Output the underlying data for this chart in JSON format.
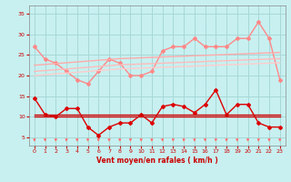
{
  "xlabel": "Vent moyen/en rafales ( km/h )",
  "bg_color": "#c8f0f0",
  "grid_color": "#a8d8d8",
  "xlim": [
    -0.5,
    23.5
  ],
  "ylim": [
    3,
    37
  ],
  "yticks": [
    5,
    10,
    15,
    20,
    25,
    30,
    35
  ],
  "xticks": [
    0,
    1,
    2,
    3,
    4,
    5,
    6,
    7,
    8,
    9,
    10,
    11,
    12,
    13,
    14,
    15,
    16,
    17,
    18,
    19,
    20,
    21,
    22,
    23
  ],
  "series": [
    {
      "name": "rafales_spiky",
      "color": "#ff8888",
      "linewidth": 1.0,
      "marker": "D",
      "markersize": 2.0,
      "values": [
        27,
        24,
        23,
        21,
        19,
        18,
        21,
        24,
        23,
        20,
        20,
        21,
        26,
        27,
        27,
        29,
        27,
        27,
        27,
        29,
        29,
        33,
        29,
        19
      ]
    },
    {
      "name": "trend_upper",
      "color": "#ffaaaa",
      "linewidth": 1.0,
      "marker": null,
      "markersize": 0,
      "values": [
        22.5,
        22.7,
        22.9,
        23.1,
        23.3,
        23.5,
        23.7,
        23.9,
        24.1,
        24.2,
        24.3,
        24.4,
        24.5,
        24.6,
        24.7,
        24.8,
        24.9,
        25.0,
        25.1,
        25.2,
        25.3,
        25.4,
        25.5,
        25.6
      ]
    },
    {
      "name": "trend_lower",
      "color": "#ffbbbb",
      "linewidth": 1.0,
      "marker": null,
      "markersize": 0,
      "values": [
        21.0,
        21.2,
        21.4,
        21.6,
        21.8,
        22.0,
        22.2,
        22.4,
        22.6,
        22.7,
        22.8,
        22.9,
        23.0,
        23.1,
        23.2,
        23.3,
        23.4,
        23.5,
        23.6,
        23.7,
        23.8,
        23.9,
        24.0,
        24.1
      ]
    },
    {
      "name": "rafales_lower_band",
      "color": "#ffcccc",
      "linewidth": 1.0,
      "marker": null,
      "markersize": 0,
      "values": [
        20.0,
        20.2,
        20.4,
        20.6,
        20.8,
        21.0,
        21.2,
        21.4,
        21.6,
        21.7,
        21.8,
        21.9,
        22.0,
        22.1,
        22.2,
        22.3,
        22.4,
        22.5,
        22.6,
        22.7,
        22.8,
        22.9,
        23.0,
        23.1
      ]
    },
    {
      "name": "vent_main",
      "color": "#dd0000",
      "linewidth": 1.0,
      "marker": "D",
      "markersize": 2.0,
      "values": [
        14.5,
        10.5,
        10,
        12,
        12,
        7.5,
        5.5,
        7.5,
        8.5,
        8.5,
        10.5,
        8.5,
        12.5,
        13,
        12.5,
        11,
        13,
        16.5,
        10.5,
        13,
        13,
        8.5,
        7.5,
        7.5
      ]
    },
    {
      "name": "vent_flat_upper",
      "color": "#cc0000",
      "linewidth": 1.0,
      "marker": null,
      "markersize": 0,
      "values": [
        10.5,
        10.5,
        10.5,
        10.5,
        10.5,
        10.5,
        10.5,
        10.5,
        10.5,
        10.5,
        10.5,
        10.5,
        10.5,
        10.5,
        10.5,
        10.5,
        10.5,
        10.5,
        10.5,
        10.5,
        10.5,
        10.5,
        10.5,
        10.5
      ]
    },
    {
      "name": "vent_flat_lower",
      "color": "#cc0000",
      "linewidth": 1.0,
      "marker": null,
      "markersize": 0,
      "values": [
        10,
        10,
        10,
        10,
        10,
        10,
        10,
        10,
        10,
        10,
        10,
        10,
        10,
        10,
        10,
        10,
        10,
        10,
        10,
        10,
        10,
        10,
        10,
        10
      ]
    }
  ],
  "arrows": {
    "color": "#ff7777",
    "markersize": 5
  }
}
